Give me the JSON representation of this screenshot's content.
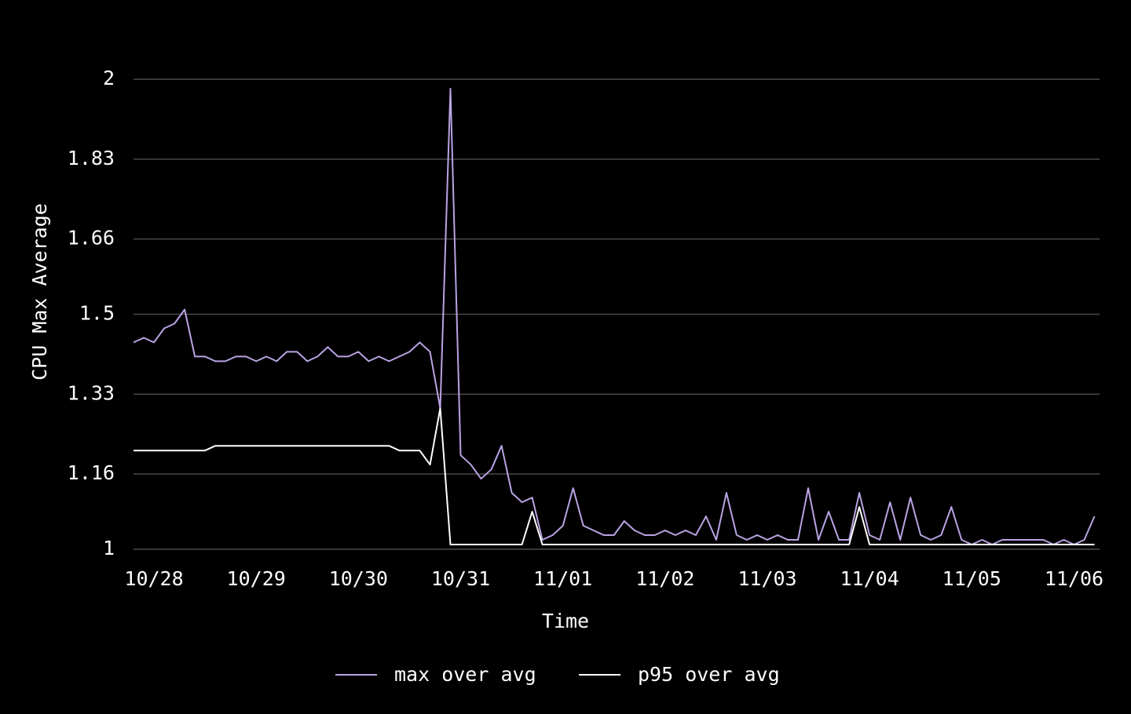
{
  "chart_data": {
    "type": "line",
    "x_label": "Time",
    "y_label": "CPU Max Average",
    "categories": [
      null,
      null,
      "10/28",
      null,
      null,
      null,
      null,
      null,
      null,
      null,
      null,
      null,
      "10/29",
      null,
      null,
      null,
      null,
      null,
      null,
      null,
      null,
      null,
      "10/30",
      null,
      null,
      null,
      null,
      null,
      null,
      null,
      null,
      null,
      "10/31",
      null,
      null,
      null,
      null,
      null,
      null,
      null,
      null,
      null,
      "11/01",
      null,
      null,
      null,
      null,
      null,
      null,
      null,
      null,
      null,
      "11/02",
      null,
      null,
      null,
      null,
      null,
      null,
      null,
      null,
      null,
      "11/03",
      null,
      null,
      null,
      null,
      null,
      null,
      null,
      null,
      null,
      "11/04",
      null,
      null,
      null,
      null,
      null,
      null,
      null,
      null,
      null,
      "11/05",
      null,
      null,
      null,
      null,
      null,
      null,
      null,
      null,
      null,
      "11/06",
      null,
      null
    ],
    "series": [
      {
        "name": "max over avg",
        "color": "#b9a3e3",
        "values": [
          1.44,
          1.45,
          1.44,
          1.47,
          1.48,
          1.51,
          1.41,
          1.41,
          1.4,
          1.4,
          1.41,
          1.41,
          1.4,
          1.41,
          1.4,
          1.42,
          1.42,
          1.4,
          1.41,
          1.43,
          1.41,
          1.41,
          1.42,
          1.4,
          1.41,
          1.4,
          1.41,
          1.42,
          1.44,
          1.42,
          1.3,
          1.98,
          1.2,
          1.18,
          1.15,
          1.17,
          1.22,
          1.12,
          1.1,
          1.11,
          1.02,
          1.03,
          1.05,
          1.13,
          1.05,
          1.04,
          1.03,
          1.03,
          1.06,
          1.04,
          1.03,
          1.03,
          1.04,
          1.03,
          1.04,
          1.03,
          1.07,
          1.02,
          1.12,
          1.03,
          1.02,
          1.03,
          1.02,
          1.03,
          1.02,
          1.02,
          1.13,
          1.02,
          1.08,
          1.02,
          1.02,
          1.12,
          1.03,
          1.02,
          1.1,
          1.02,
          1.11,
          1.03,
          1.02,
          1.03,
          1.09,
          1.02,
          1.01,
          1.02,
          1.01,
          1.02,
          1.02,
          1.02,
          1.02,
          1.02,
          1.01,
          1.02,
          1.01,
          1.02,
          1.07
        ]
      },
      {
        "name": "p95 over avg",
        "color": "#ffffff",
        "values": [
          1.21,
          1.21,
          1.21,
          1.21,
          1.21,
          1.21,
          1.21,
          1.21,
          1.22,
          1.22,
          1.22,
          1.22,
          1.22,
          1.22,
          1.22,
          1.22,
          1.22,
          1.22,
          1.22,
          1.22,
          1.22,
          1.22,
          1.22,
          1.22,
          1.22,
          1.22,
          1.21,
          1.21,
          1.21,
          1.18,
          1.3,
          1.01,
          1.01,
          1.01,
          1.01,
          1.01,
          1.01,
          1.01,
          1.01,
          1.08,
          1.01,
          1.01,
          1.01,
          1.01,
          1.01,
          1.01,
          1.01,
          1.01,
          1.01,
          1.01,
          1.01,
          1.01,
          1.01,
          1.01,
          1.01,
          1.01,
          1.01,
          1.01,
          1.01,
          1.01,
          1.01,
          1.01,
          1.01,
          1.01,
          1.01,
          1.01,
          1.01,
          1.01,
          1.01,
          1.01,
          1.01,
          1.09,
          1.01,
          1.01,
          1.01,
          1.01,
          1.01,
          1.01,
          1.01,
          1.01,
          1.01,
          1.01,
          1.01,
          1.01,
          1.01,
          1.01,
          1.01,
          1.01,
          1.01,
          1.01,
          1.01,
          1.01,
          1.01,
          1.01,
          1.01
        ]
      }
    ],
    "ylim": [
      1,
      2
    ],
    "yticks": [
      1,
      1.16,
      1.33,
      1.5,
      1.66,
      1.83,
      2
    ],
    "grid": true,
    "legend": "bottom"
  }
}
